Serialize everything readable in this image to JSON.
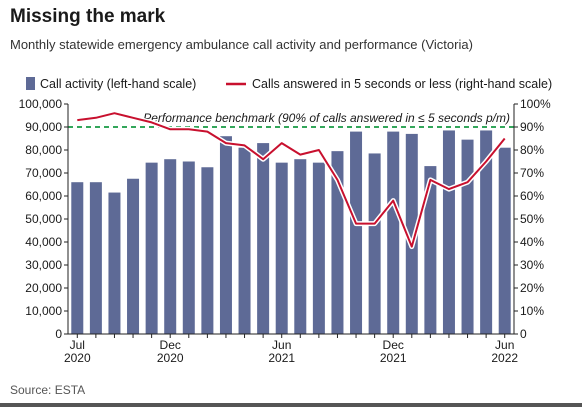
{
  "title": "Missing the mark",
  "subtitle": "Monthly statewide emergency ambulance call activity and performance (Victoria)",
  "source": "Source: ESTA",
  "colors": {
    "bars": "#5e6a96",
    "line": "#c8102e",
    "benchmark": "#33a65a",
    "axis": "#222222",
    "text": "#1a1a1a"
  },
  "chart_data": {
    "type": "bar",
    "title": "Missing the mark",
    "legend_placement": "top",
    "grid": false,
    "x": [
      "Jul 2020",
      "Aug 2020",
      "Sep 2020",
      "Oct 2020",
      "Nov 2020",
      "Dec 2020",
      "Jan 2021",
      "Feb 2021",
      "Mar 2021",
      "Apr 2021",
      "May 2021",
      "Jun 2021",
      "Jul 2021",
      "Aug 2021",
      "Sep 2021",
      "Oct 2021",
      "Nov 2021",
      "Dec 2021",
      "Jan 2022",
      "Feb 2022",
      "Mar 2022",
      "Apr 2022",
      "May 2022",
      "Jun 2022"
    ],
    "x_tick_labels": [
      {
        "index": 0,
        "line1": "Jul",
        "line2": "2020"
      },
      {
        "index": 5,
        "line1": "Dec",
        "line2": "2020"
      },
      {
        "index": 11,
        "line1": "Jun",
        "line2": "2021"
      },
      {
        "index": 17,
        "line1": "Dec",
        "line2": "2021"
      },
      {
        "index": 23,
        "line1": "Jun",
        "line2": "2022"
      }
    ],
    "series": [
      {
        "name": "Call activity (left-hand scale)",
        "type": "bar",
        "axis": "left",
        "values": [
          66000,
          66000,
          61500,
          67500,
          74500,
          76000,
          75000,
          72500,
          86000,
          81000,
          83000,
          74500,
          76000,
          74500,
          79500,
          88000,
          78500,
          88000,
          87000,
          73000,
          88500,
          84500,
          88500,
          81000
        ]
      },
      {
        "name": "Calls answered in 5 seconds or less (right-hand scale)",
        "type": "line",
        "axis": "right",
        "values": [
          93,
          94,
          96,
          94,
          92,
          89,
          89,
          88,
          83,
          82,
          76,
          83,
          78,
          80,
          67,
          48,
          48,
          58,
          38,
          67,
          63,
          66,
          75,
          85
        ]
      }
    ],
    "left_axis": {
      "min": 0,
      "max": 100000,
      "step": 10000,
      "tick_labels": [
        "0",
        "10,000",
        "20,000",
        "30,000",
        "40,000",
        "50,000",
        "60,000",
        "70,000",
        "80,000",
        "90,000",
        "100,000"
      ]
    },
    "right_axis": {
      "min": 0,
      "max": 100,
      "step": 10,
      "tick_labels": [
        "0",
        "10%",
        "20%",
        "30%",
        "40%",
        "50%",
        "60%",
        "70%",
        "80%",
        "90%",
        "100%"
      ]
    },
    "benchmark": {
      "value": 90,
      "axis": "right",
      "label": "Performance benchmark (90% of calls answered in ≤ 5 seconds p/m)"
    }
  }
}
